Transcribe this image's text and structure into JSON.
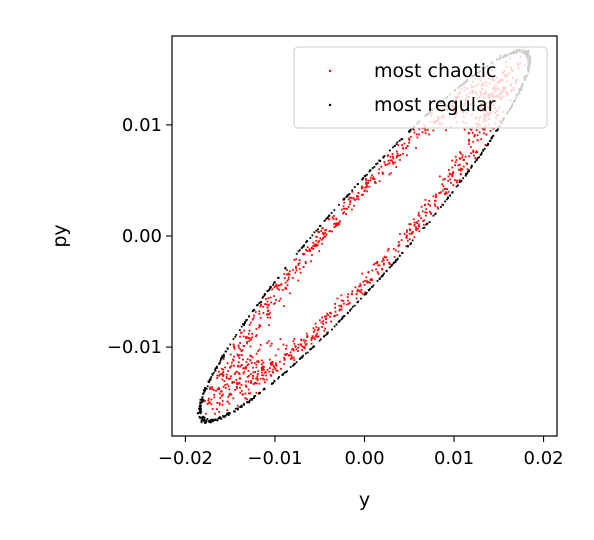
{
  "chart_data": {
    "type": "scatter",
    "title": "",
    "xlabel": "y",
    "ylabel": "py",
    "xlim": [
      -0.0215,
      0.0215
    ],
    "ylim": [
      -0.018,
      0.018
    ],
    "xticks": [
      -0.02,
      -0.01,
      0.0,
      0.01,
      0.02
    ],
    "xtick_labels": [
      "−0.02",
      "−0.01",
      "0.00",
      "0.01",
      "0.02"
    ],
    "yticks": [
      -0.01,
      0.0,
      0.01
    ],
    "ytick_labels": [
      "−0.01",
      "0.00",
      "0.01"
    ],
    "grid": false,
    "legend": {
      "position": "upper-right"
    },
    "series": [
      {
        "name": "most chaotic",
        "color": "#ff0000",
        "marker": "point",
        "shape": "filled elliptical annulus between the regular orbit and an inner hole",
        "center": [
          0.0,
          0.0
        ],
        "outer_extent_y": [
          -0.0185,
          0.0185
        ],
        "outer_extent_py": [
          -0.016,
          0.0155
        ],
        "inner_hole_extent_y": [
          -0.011,
          0.011
        ],
        "inner_hole_extent_py": [
          -0.012,
          0.012
        ],
        "approx_point_count": 1200
      },
      {
        "name": "most regular",
        "color": "#000000",
        "marker": "point",
        "shape": "closed elliptical orbit, major axis along the line py ≈ 0.9·y",
        "center": [
          0.0,
          0.0
        ],
        "extent_y": [
          -0.019,
          0.019
        ],
        "extent_py": [
          -0.0165,
          0.0165
        ],
        "approx_point_count": 700
      }
    ]
  }
}
